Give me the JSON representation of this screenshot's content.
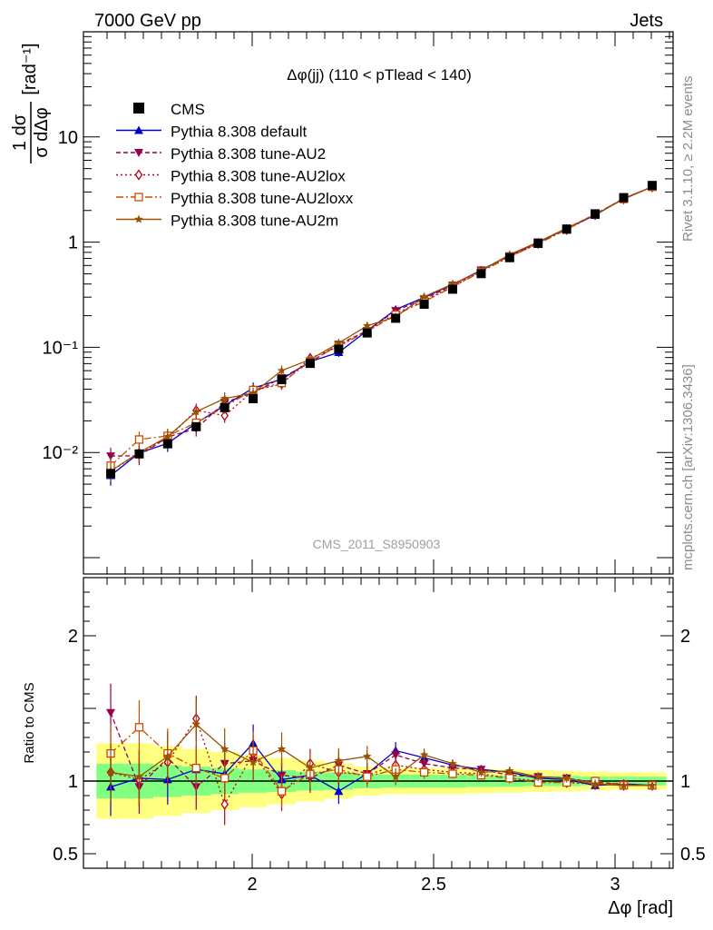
{
  "header": {
    "energy_label": "7000 GeV pp",
    "process_label": "Jets",
    "plot_title": "Δφ(jj) (110 < pTlead <  140)",
    "watermark": "CMS_2011_S8950903",
    "side_rivet": "Rivet 3.1.10, ≥ 2.2M events",
    "side_mcplots": "mcplots.cern.ch [arXiv:1306.3436]"
  },
  "axes": {
    "main_ylabel_top": "1 dσ",
    "main_ylabel_bottom": "σ dΔφ",
    "main_ylabel_unit": "[rad⁻¹]",
    "ratio_ylabel": "Ratio to CMS",
    "xlabel": "Δφ [rad]",
    "main_yticks": [
      "10⁻²",
      "10⁻¹",
      "1",
      "10"
    ],
    "ratio_yticks": [
      "0.5",
      "1",
      "2"
    ],
    "xticks": [
      "2",
      "2.5",
      "3"
    ]
  },
  "colors": {
    "cms": "#000000",
    "default": "#0000cc",
    "au2": "#99004c",
    "au2lox": "#b3001a",
    "au2loxx": "#cc4a00",
    "au2m": "#995200",
    "band_yellow": "#ffff80",
    "band_green": "#80ff80"
  },
  "chart_data": {
    "type": "line",
    "x": [
      1.6101,
      1.6886,
      1.7671,
      1.8457,
      1.9242,
      2.0027,
      2.0813,
      2.1598,
      2.2384,
      2.3169,
      2.3954,
      2.474,
      2.5525,
      2.6311,
      2.7096,
      2.7881,
      2.8667,
      2.9452,
      3.0238,
      3.1023
    ],
    "xlim": [
      1.535,
      3.16
    ],
    "ylim": [
      0.0007,
      100
    ],
    "ratio_ylim": [
      0.4,
      2.4
    ],
    "yscale": "log",
    "xlabel": "Δφ [rad]",
    "ylabel": "1/σ dσ/dΔφ [rad⁻¹]",
    "cms": {
      "name": "CMS",
      "values": [
        0.0063,
        0.0097,
        0.0121,
        0.0176,
        0.0267,
        0.0325,
        0.0493,
        0.0703,
        0.0962,
        0.137,
        0.189,
        0.257,
        0.357,
        0.502,
        0.712,
        0.974,
        1.33,
        1.86,
        2.65,
        3.46
      ],
      "band_yellow": [
        0.26,
        0.26,
        0.24,
        0.22,
        0.2,
        0.18,
        0.16,
        0.14,
        0.12,
        0.1,
        0.09,
        0.09,
        0.09,
        0.085,
        0.08,
        0.075,
        0.07,
        0.065,
        0.06,
        0.06
      ],
      "band_green": [
        0.12,
        0.12,
        0.11,
        0.1,
        0.09,
        0.08,
        0.075,
        0.065,
        0.06,
        0.05,
        0.045,
        0.045,
        0.045,
        0.04,
        0.04,
        0.035,
        0.035,
        0.03,
        0.03,
        0.03
      ]
    },
    "series": [
      {
        "name": "Pythia 8.308 default",
        "key": "default",
        "marker": "triangle-up",
        "dash": "",
        "ratio": [
          0.96,
          1.02,
          1.01,
          1.08,
          1.05,
          1.26,
          1.01,
          1.04,
          0.93,
          1.05,
          1.21,
          1.16,
          1.11,
          1.08,
          1.06,
          1.02,
          1.01,
          0.97,
          0.98,
          0.97
        ]
      },
      {
        "name": "Pythia 8.308 tune-AU2",
        "key": "au2",
        "marker": "triangle-down",
        "dash": "5,3",
        "ratio": [
          1.47,
          0.96,
          1.16,
          0.96,
          1.12,
          1.14,
          1.04,
          1.02,
          1.11,
          1.05,
          1.18,
          1.12,
          1.09,
          1.08,
          1.04,
          1.03,
          1.02,
          0.99,
          0.98,
          0.97
        ]
      },
      {
        "name": "Pythia 8.308 tune-AU2lox",
        "key": "au2lox",
        "marker": "diamond-open",
        "dash": "2,3",
        "ratio": [
          1.06,
          1.01,
          1.13,
          1.43,
          0.84,
          1.19,
          0.91,
          1.12,
          1.06,
          1.04,
          1.11,
          1.08,
          1.06,
          1.05,
          1.02,
          1.0,
          0.99,
          0.98,
          0.97,
          0.97
        ]
      },
      {
        "name": "Pythia 8.308 tune-AU2loxx",
        "key": "au2loxx",
        "marker": "square-open",
        "dash": "8,3,2,3",
        "ratio": [
          1.19,
          1.37,
          1.19,
          1.09,
          1.02,
          1.21,
          0.93,
          1.05,
          1.08,
          1.03,
          1.08,
          1.06,
          1.05,
          1.04,
          1.02,
          0.99,
          0.99,
          1.0,
          0.97,
          0.97
        ]
      },
      {
        "name": "Pythia 8.308 tune-AU2m",
        "key": "au2m",
        "marker": "star",
        "dash": "",
        "ratio": [
          1.06,
          1.03,
          1.17,
          1.39,
          1.22,
          1.13,
          1.22,
          1.09,
          1.14,
          1.17,
          1.03,
          1.18,
          1.12,
          1.06,
          1.07,
          1.03,
          1.02,
          0.98,
          0.97,
          0.97
        ]
      }
    ]
  }
}
